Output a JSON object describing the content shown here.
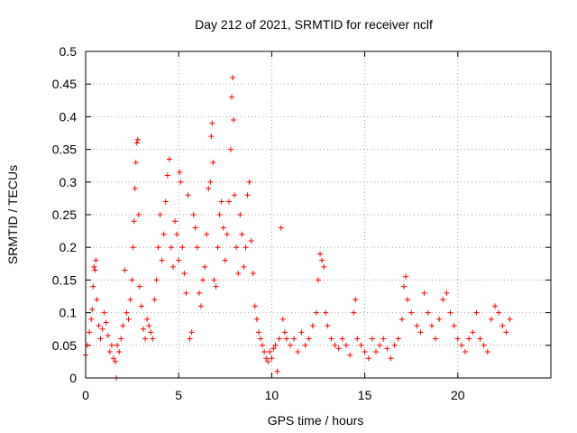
{
  "chart_data": {
    "type": "scatter",
    "title": "Day 212 of 2021, SRMTID for receiver nclf",
    "xlabel": "GPS time / hours",
    "ylabel": "SRMTID / TECUs",
    "xlim": [
      0,
      25
    ],
    "ylim": [
      0,
      0.5
    ],
    "xticks": [
      0,
      5,
      10,
      15,
      20
    ],
    "xtick_labels": [
      "0",
      "5",
      "10",
      "15",
      "20"
    ],
    "yticks": [
      0,
      0.05,
      0.1,
      0.15,
      0.2,
      0.25,
      0.3,
      0.35,
      0.4,
      0.45,
      0.5
    ],
    "ytick_labels": [
      "0",
      "0.05",
      "0.1",
      "0.15",
      "0.2",
      "0.25",
      "0.3",
      "0.35",
      "0.4",
      "0.45",
      "0.5"
    ],
    "grid": true,
    "marker": "plus",
    "color": "#ff0000",
    "series": [
      {
        "points": [
          [
            0.0,
            0.035
          ],
          [
            0.1,
            0.05
          ],
          [
            0.2,
            0.07
          ],
          [
            0.3,
            0.09
          ],
          [
            0.35,
            0.105
          ],
          [
            0.4,
            0.14
          ],
          [
            0.45,
            0.17
          ],
          [
            0.5,
            0.165
          ],
          [
            0.55,
            0.18
          ],
          [
            0.6,
            0.12
          ],
          [
            0.7,
            0.08
          ],
          [
            0.8,
            0.06
          ],
          [
            0.9,
            0.075
          ],
          [
            1.0,
            0.1
          ],
          [
            1.1,
            0.085
          ],
          [
            1.2,
            0.065
          ],
          [
            1.3,
            0.04
          ],
          [
            1.4,
            0.05
          ],
          [
            1.5,
            0.03
          ],
          [
            1.6,
            0.025
          ],
          [
            1.65,
            0.0
          ],
          [
            1.7,
            0.05
          ],
          [
            1.8,
            0.04
          ],
          [
            1.9,
            0.06
          ],
          [
            2.0,
            0.08
          ],
          [
            2.1,
            0.165
          ],
          [
            2.2,
            0.1
          ],
          [
            2.3,
            0.09
          ],
          [
            2.4,
            0.12
          ],
          [
            2.5,
            0.15
          ],
          [
            2.55,
            0.2
          ],
          [
            2.6,
            0.24
          ],
          [
            2.65,
            0.29
          ],
          [
            2.7,
            0.33
          ],
          [
            2.75,
            0.36
          ],
          [
            2.8,
            0.365
          ],
          [
            2.85,
            0.25
          ],
          [
            2.9,
            0.14
          ],
          [
            3.0,
            0.11
          ],
          [
            3.1,
            0.075
          ],
          [
            3.2,
            0.06
          ],
          [
            3.3,
            0.09
          ],
          [
            3.4,
            0.08
          ],
          [
            3.5,
            0.07
          ],
          [
            3.6,
            0.06
          ],
          [
            3.7,
            0.12
          ],
          [
            3.8,
            0.15
          ],
          [
            3.9,
            0.2
          ],
          [
            4.0,
            0.25
          ],
          [
            4.1,
            0.18
          ],
          [
            4.2,
            0.22
          ],
          [
            4.3,
            0.27
          ],
          [
            4.4,
            0.31
          ],
          [
            4.5,
            0.335
          ],
          [
            4.6,
            0.2
          ],
          [
            4.7,
            0.17
          ],
          [
            4.8,
            0.24
          ],
          [
            4.9,
            0.22
          ],
          [
            5.0,
            0.18
          ],
          [
            5.05,
            0.315
          ],
          [
            5.1,
            0.3
          ],
          [
            5.2,
            0.2
          ],
          [
            5.3,
            0.16
          ],
          [
            5.4,
            0.13
          ],
          [
            5.5,
            0.28
          ],
          [
            5.6,
            0.06
          ],
          [
            5.7,
            0.07
          ],
          [
            5.8,
            0.25
          ],
          [
            5.9,
            0.23
          ],
          [
            6.0,
            0.2
          ],
          [
            6.1,
            0.13
          ],
          [
            6.2,
            0.11
          ],
          [
            6.3,
            0.15
          ],
          [
            6.4,
            0.17
          ],
          [
            6.5,
            0.22
          ],
          [
            6.6,
            0.29
          ],
          [
            6.7,
            0.3
          ],
          [
            6.75,
            0.37
          ],
          [
            6.8,
            0.39
          ],
          [
            6.85,
            0.33
          ],
          [
            6.9,
            0.15
          ],
          [
            7.0,
            0.14
          ],
          [
            7.1,
            0.2
          ],
          [
            7.2,
            0.25
          ],
          [
            7.3,
            0.27
          ],
          [
            7.4,
            0.23
          ],
          [
            7.5,
            0.18
          ],
          [
            7.6,
            0.22
          ],
          [
            7.7,
            0.27
          ],
          [
            7.8,
            0.35
          ],
          [
            7.85,
            0.43
          ],
          [
            7.9,
            0.46
          ],
          [
            7.95,
            0.395
          ],
          [
            8.0,
            0.28
          ],
          [
            8.1,
            0.2
          ],
          [
            8.2,
            0.16
          ],
          [
            8.3,
            0.25
          ],
          [
            8.4,
            0.22
          ],
          [
            8.5,
            0.17
          ],
          [
            8.6,
            0.2
          ],
          [
            8.7,
            0.28
          ],
          [
            8.8,
            0.3
          ],
          [
            8.9,
            0.21
          ],
          [
            9.0,
            0.16
          ],
          [
            9.1,
            0.11
          ],
          [
            9.2,
            0.09
          ],
          [
            9.3,
            0.07
          ],
          [
            9.4,
            0.06
          ],
          [
            9.5,
            0.05
          ],
          [
            9.6,
            0.04
          ],
          [
            9.7,
            0.03
          ],
          [
            9.8,
            0.025
          ],
          [
            9.9,
            0.04
          ],
          [
            10.0,
            0.03
          ],
          [
            10.1,
            0.045
          ],
          [
            10.2,
            0.05
          ],
          [
            10.3,
            0.01
          ],
          [
            10.4,
            0.06
          ],
          [
            10.5,
            0.23
          ],
          [
            10.6,
            0.09
          ],
          [
            10.7,
            0.07
          ],
          [
            10.8,
            0.06
          ],
          [
            11.0,
            0.05
          ],
          [
            11.2,
            0.06
          ],
          [
            11.4,
            0.04
          ],
          [
            11.6,
            0.07
          ],
          [
            11.8,
            0.05
          ],
          [
            12.0,
            0.06
          ],
          [
            12.2,
            0.08
          ],
          [
            12.4,
            0.1
          ],
          [
            12.5,
            0.15
          ],
          [
            12.6,
            0.19
          ],
          [
            12.7,
            0.18
          ],
          [
            12.8,
            0.17
          ],
          [
            12.9,
            0.1
          ],
          [
            13.0,
            0.08
          ],
          [
            13.2,
            0.06
          ],
          [
            13.4,
            0.05
          ],
          [
            13.6,
            0.045
          ],
          [
            13.8,
            0.06
          ],
          [
            14.0,
            0.05
          ],
          [
            14.2,
            0.035
          ],
          [
            14.4,
            0.1
          ],
          [
            14.5,
            0.12
          ],
          [
            14.6,
            0.06
          ],
          [
            14.8,
            0.05
          ],
          [
            15.0,
            0.04
          ],
          [
            15.2,
            0.03
          ],
          [
            15.4,
            0.06
          ],
          [
            15.6,
            0.04
          ],
          [
            15.8,
            0.05
          ],
          [
            16.0,
            0.06
          ],
          [
            16.2,
            0.045
          ],
          [
            16.4,
            0.03
          ],
          [
            16.6,
            0.05
          ],
          [
            16.8,
            0.06
          ],
          [
            17.0,
            0.09
          ],
          [
            17.1,
            0.14
          ],
          [
            17.2,
            0.155
          ],
          [
            17.3,
            0.12
          ],
          [
            17.5,
            0.1
          ],
          [
            17.8,
            0.08
          ],
          [
            18.0,
            0.07
          ],
          [
            18.2,
            0.13
          ],
          [
            18.4,
            0.1
          ],
          [
            18.6,
            0.08
          ],
          [
            18.8,
            0.06
          ],
          [
            19.0,
            0.09
          ],
          [
            19.2,
            0.12
          ],
          [
            19.4,
            0.13
          ],
          [
            19.6,
            0.1
          ],
          [
            19.8,
            0.08
          ],
          [
            20.0,
            0.06
          ],
          [
            20.2,
            0.05
          ],
          [
            20.4,
            0.04
          ],
          [
            20.6,
            0.06
          ],
          [
            20.8,
            0.07
          ],
          [
            21.0,
            0.1
          ],
          [
            21.2,
            0.06
          ],
          [
            21.4,
            0.05
          ],
          [
            21.6,
            0.04
          ],
          [
            21.8,
            0.09
          ],
          [
            22.0,
            0.11
          ],
          [
            22.2,
            0.1
          ],
          [
            22.4,
            0.08
          ],
          [
            22.6,
            0.07
          ],
          [
            22.8,
            0.09
          ]
        ]
      }
    ]
  }
}
